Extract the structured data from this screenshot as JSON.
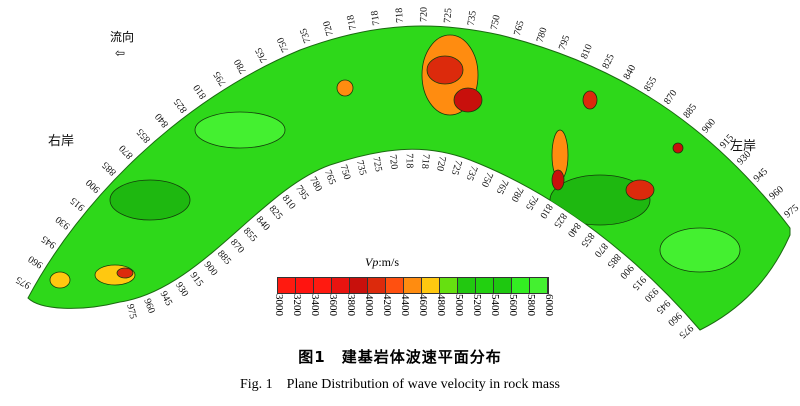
{
  "figure": {
    "flow_label": "流向",
    "flow_arrow_icon": "hollow-arrow-left",
    "right_bank": "右岸",
    "left_bank": "左岸",
    "legend_title_var": "Vp",
    "legend_title_unit": ":m/s",
    "legend_values": [
      "3000",
      "3200",
      "3400",
      "3600",
      "3800",
      "4000",
      "4200",
      "4400",
      "4600",
      "4800",
      "5000",
      "5200",
      "5400",
      "5600",
      "5800",
      "6000"
    ],
    "legend_colors": [
      "#ff1a10",
      "#ff1410",
      "#ff1a10",
      "#e81410",
      "#c8100c",
      "#dc2a0c",
      "#ff5010",
      "#ff8c10",
      "#ffc810",
      "#66e010",
      "#22c810",
      "#22d010",
      "#1ec810",
      "#33ee22",
      "#44f030",
      "#55f040"
    ],
    "outer_labels": [
      "975",
      "960",
      "945",
      "930",
      "915",
      "900",
      "885",
      "870",
      "855",
      "840",
      "825",
      "810",
      "795",
      "780",
      "765",
      "750",
      "735",
      "720",
      "718",
      "718",
      "718",
      "720",
      "725",
      "735",
      "750",
      "765",
      "780",
      "795",
      "810",
      "825",
      "840",
      "855",
      "870",
      "885",
      "900",
      "915",
      "930",
      "945",
      "960",
      "975"
    ],
    "inner_labels": [
      "975",
      "960",
      "945",
      "930",
      "915",
      "900",
      "885",
      "870",
      "855",
      "840",
      "825",
      "810",
      "795",
      "780",
      "765",
      "750",
      "735",
      "725",
      "720",
      "718",
      "718",
      "720",
      "725",
      "735",
      "750",
      "765",
      "780",
      "795",
      "810",
      "825",
      "840",
      "855",
      "870",
      "885",
      "900",
      "915",
      "930",
      "945",
      "960",
      "975"
    ],
    "caption_cn": "图1　建基岩体波速平面分布",
    "caption_en": "Fig. 1　Plane Distribution of wave velocity in rock mass"
  }
}
